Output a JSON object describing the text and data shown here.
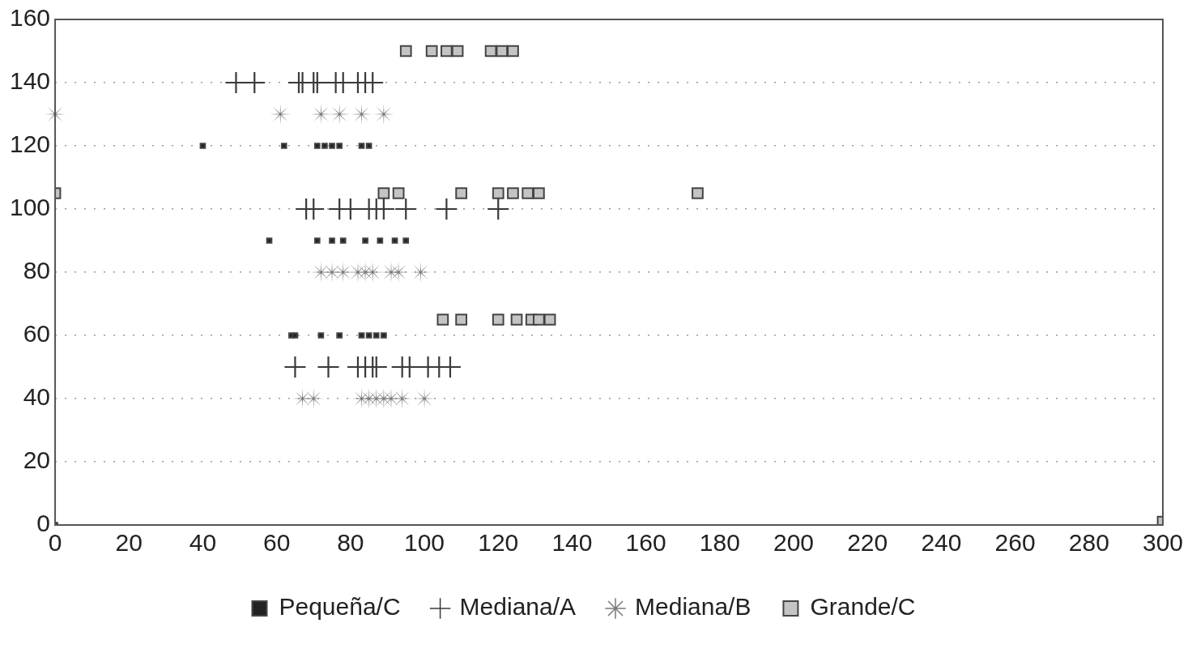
{
  "chart_data": {
    "type": "scatter",
    "xlim": [
      0,
      300
    ],
    "xticks": [
      0,
      20,
      40,
      60,
      80,
      100,
      120,
      140,
      160,
      180,
      200,
      220,
      240,
      260,
      280,
      300
    ],
    "ylim": [
      0,
      160
    ],
    "yticks": [
      0,
      20,
      40,
      60,
      80,
      100,
      120,
      140,
      160
    ],
    "grid": "y",
    "legend": "bottom",
    "series": [
      {
        "name": "Pequeña/C",
        "color": "#222222",
        "marker": "square",
        "x": [
          0,
          40,
          62,
          71,
          73,
          75,
          77,
          83,
          85,
          58,
          71,
          75,
          78,
          84,
          88,
          92,
          95,
          64,
          65,
          72,
          77,
          83,
          85,
          87,
          89
        ],
        "values": [
          0,
          120,
          120,
          120,
          120,
          120,
          120,
          120,
          120,
          90,
          90,
          90,
          90,
          90,
          90,
          90,
          90,
          60,
          60,
          60,
          60,
          60,
          60,
          60,
          60
        ]
      },
      {
        "name": "Mediana/A",
        "color": "#3a3a3a",
        "marker": "cross",
        "x": [
          49,
          54,
          66,
          67,
          70,
          71,
          76,
          78,
          82,
          84,
          86,
          68,
          70,
          77,
          80,
          85,
          87,
          89,
          95,
          106,
          120,
          65,
          74,
          82,
          84,
          86,
          87,
          94,
          96,
          101,
          104,
          107
        ],
        "values": [
          140,
          140,
          140,
          140,
          140,
          140,
          140,
          140,
          140,
          140,
          140,
          100,
          100,
          100,
          100,
          100,
          100,
          100,
          100,
          100,
          100,
          50,
          50,
          50,
          50,
          50,
          50,
          50,
          50,
          50,
          50,
          50
        ]
      },
      {
        "name": "Mediana/B",
        "color": "#7a7a7a",
        "marker": "star",
        "x": [
          0,
          61,
          72,
          77,
          83,
          89,
          72,
          75,
          78,
          82,
          84,
          86,
          91,
          93,
          99,
          67,
          70,
          83,
          85,
          87,
          89,
          91,
          94,
          100
        ],
        "values": [
          130,
          130,
          130,
          130,
          130,
          130,
          80,
          80,
          80,
          80,
          80,
          80,
          80,
          80,
          80,
          40,
          40,
          40,
          40,
          40,
          40,
          40,
          40,
          40
        ]
      },
      {
        "name": "Grande/C",
        "color": "#c4c4c4",
        "marker": "square",
        "x": [
          95,
          102,
          106,
          109,
          118,
          121,
          124,
          0,
          89,
          93,
          110,
          120,
          124,
          128,
          131,
          174,
          105,
          110,
          120,
          125,
          129,
          131,
          134,
          300
        ],
        "values": [
          150,
          150,
          150,
          150,
          150,
          150,
          150,
          105,
          105,
          105,
          105,
          105,
          105,
          105,
          105,
          105,
          65,
          65,
          65,
          65,
          65,
          65,
          65,
          1
        ]
      }
    ]
  }
}
